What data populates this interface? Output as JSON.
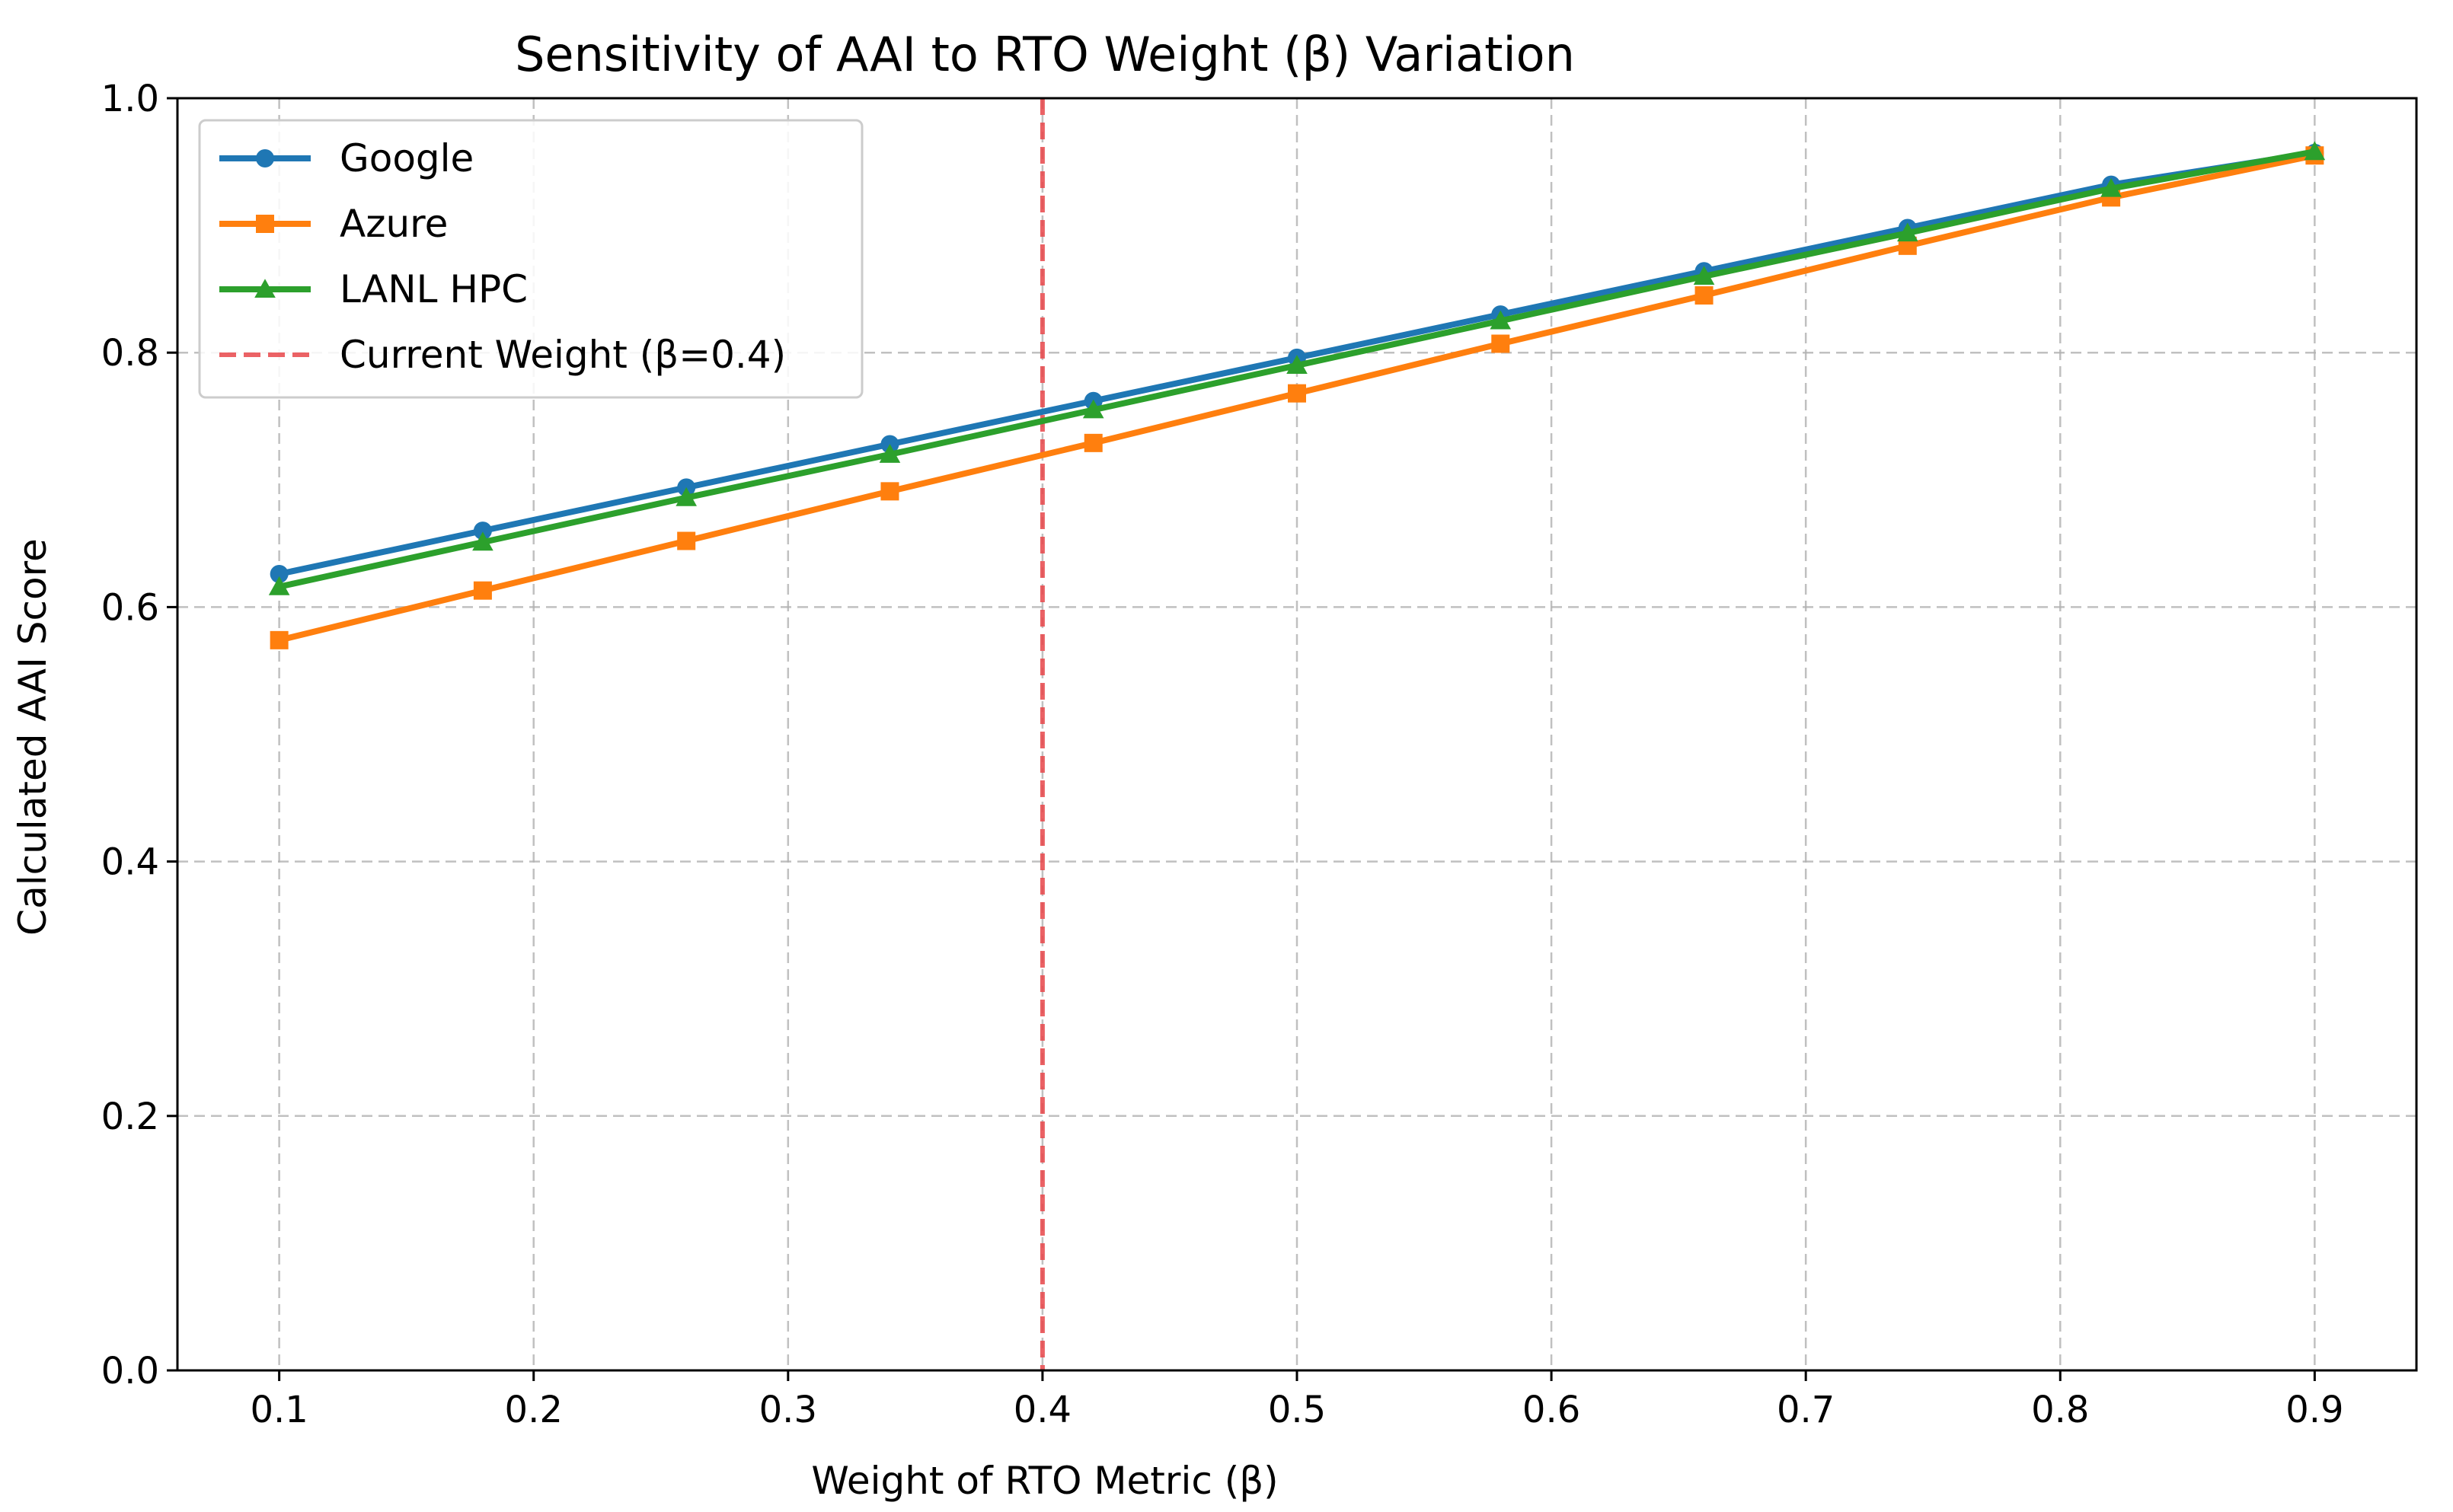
{
  "chart_data": {
    "type": "line",
    "title": "Sensitivity of AAI to RTO Weight (β) Variation",
    "xlabel": "Weight of RTO Metric (β)",
    "ylabel": "Calculated AAI Score",
    "xlim": [
      0.06,
      0.94
    ],
    "ylim": [
      0.0,
      1.0
    ],
    "x_ticks": [
      0.1,
      0.2,
      0.3,
      0.4,
      0.5,
      0.6,
      0.7,
      0.8,
      0.9
    ],
    "x_tick_labels": [
      "0.1",
      "0.2",
      "0.3",
      "0.4",
      "0.5",
      "0.6",
      "0.7",
      "0.8",
      "0.9"
    ],
    "y_ticks": [
      0.0,
      0.2,
      0.4,
      0.6,
      0.8,
      1.0
    ],
    "y_tick_labels": [
      "0.0",
      "0.2",
      "0.4",
      "0.6",
      "0.8",
      "1.0"
    ],
    "grid": true,
    "legend_position": "top-left",
    "x": [
      0.1,
      0.18,
      0.26,
      0.34,
      0.42,
      0.5,
      0.58,
      0.66,
      0.74,
      0.82,
      0.9
    ],
    "series": [
      {
        "name": "Google",
        "color": "#1f77b4",
        "marker": "circle",
        "values": [
          0.626,
          0.66,
          0.694,
          0.728,
          0.762,
          0.796,
          0.83,
          0.864,
          0.898,
          0.932,
          0.957
        ]
      },
      {
        "name": "Azure",
        "color": "#ff7f0e",
        "marker": "square",
        "values": [
          0.574,
          0.613,
          0.652,
          0.691,
          0.729,
          0.768,
          0.807,
          0.845,
          0.884,
          0.922,
          0.955
        ]
      },
      {
        "name": "LANL HPC",
        "color": "#2ca02c",
        "marker": "triangle",
        "values": [
          0.616,
          0.651,
          0.686,
          0.72,
          0.755,
          0.79,
          0.825,
          0.86,
          0.894,
          0.929,
          0.958
        ]
      }
    ],
    "reference_line": {
      "name": "Current Weight (β=0.4)",
      "x": 0.4,
      "color": "#e8474a",
      "style": "dashed"
    }
  }
}
